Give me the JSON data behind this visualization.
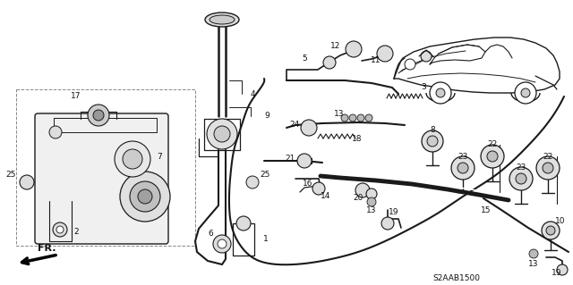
{
  "background_color": "#ffffff",
  "diagram_code": "S2AAB1500",
  "line_color": "#1a1a1a",
  "text_color": "#111111",
  "font_size": 6.5
}
